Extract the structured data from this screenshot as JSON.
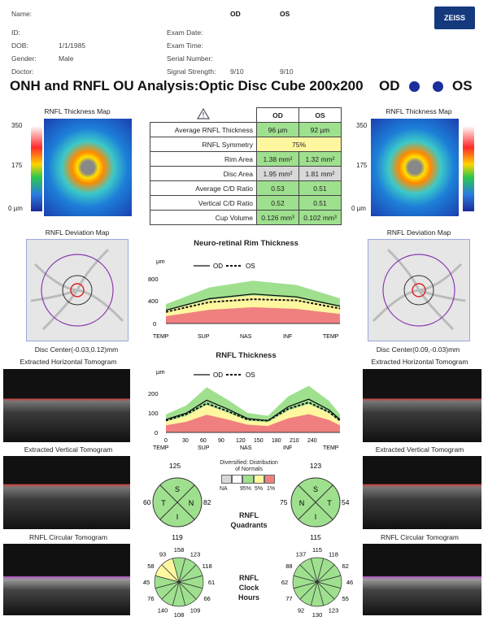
{
  "header": {
    "name_label": "Name:",
    "id_label": "ID:",
    "dob_label": "DOB:",
    "dob_value": "1/1/1985",
    "gender_label": "Gender:",
    "gender_value": "Male",
    "doctor_label": "Doctor:",
    "od_col": "OD",
    "os_col": "OS",
    "exam_date_label": "Exam Date:",
    "exam_time_label": "Exam Time:",
    "serial_label": "Serial Number:",
    "signal_label": "Signal Strength:",
    "signal_od": "9/10",
    "signal_os": "9/10",
    "logo": "ZEISS"
  },
  "title": "ONH and RNFL OU Analysis:Optic Disc Cube 200x200",
  "eye_od": "OD",
  "eye_os": "OS",
  "colors": {
    "od_dot": "#1a2e9c",
    "os_dot": "#1a2e9c",
    "normal": "#9fe08f",
    "borderline": "#fff7a0"
  },
  "table": {
    "icon": "warning-triangle",
    "col_od": "OD",
    "col_os": "OS",
    "rows": [
      {
        "label": "Average RNFL Thickness",
        "od": "96 µm",
        "os": "92 µm"
      },
      {
        "label": "RNFL Symmetry",
        "od": "75%",
        "os": ""
      },
      {
        "label": "Rim Area",
        "od": "1.38 mm²",
        "os": "1.32 mm²"
      },
      {
        "label": "Disc Area",
        "od": "1.95 mm²",
        "os": "1.81 mm²"
      },
      {
        "label": "Average C/D Ratio",
        "od": "0.53",
        "os": "0.51"
      },
      {
        "label": "Vertical C/D Ratio",
        "od": "0.52",
        "os": "0.51"
      },
      {
        "label": "Cup Volume",
        "od": "0.126 mm³",
        "os": "0.102 mm³"
      }
    ]
  },
  "left": {
    "thickness_map": "RNFL Thickness Map",
    "scale_top": "350",
    "scale_mid": "175",
    "scale_bot": "0 µm",
    "deviation_map": "RNFL Deviation Map",
    "disc_center": "Disc Center(-0.03,0.12)mm",
    "h_tomo": "Extracted Horizontal Tomogram",
    "v_tomo": "Extracted Vertical Tomogram",
    "c_tomo": "RNFL Circular Tomogram"
  },
  "right": {
    "thickness_map": "RNFL Thickness Map",
    "scale_top": "350",
    "scale_mid": "175",
    "scale_bot": "0 µm",
    "deviation_map": "RNFL Deviation Map",
    "disc_center": "Disc Center(0.09,-0.03)mm",
    "h_tomo": "Extracted Horizontal Tomogram",
    "v_tomo": "Extracted Vertical Tomogram",
    "c_tomo": "RNFL Circular Tomogram"
  },
  "rim_chart": {
    "title": "Neuro-retinal Rim Thickness",
    "unit": "µm",
    "legend_od": "OD",
    "legend_os": "OS",
    "yticks": [
      "800",
      "400",
      "0"
    ],
    "xticks": [
      "TEMP",
      "SUP",
      "NAS",
      "INF",
      "TEMP"
    ]
  },
  "rnfl_chart": {
    "title": "RNFL Thickness",
    "unit": "µm",
    "legend_od": "OD",
    "legend_os": "OS",
    "yticks": [
      "200",
      "100",
      "0"
    ],
    "xnums": [
      "0",
      "30",
      "60",
      "90",
      "120",
      "150",
      "180",
      "210",
      "240"
    ],
    "xticks": [
      "TEMP",
      "SUP",
      "NAS",
      "INF",
      "TEMP"
    ]
  },
  "chart_data": [
    {
      "type": "area",
      "title": "Neuro-retinal Rim Thickness",
      "ylabel": "µm",
      "ylim": [
        0,
        900
      ],
      "categories": [
        "TEMP",
        "SUP",
        "NAS",
        "INF",
        "TEMP"
      ],
      "series": [
        {
          "name": "OD",
          "values": [
            230,
            430,
            510,
            460,
            300
          ]
        },
        {
          "name": "OS",
          "values": [
            200,
            370,
            420,
            400,
            260
          ]
        }
      ]
    },
    {
      "type": "area",
      "title": "RNFL Thickness",
      "ylabel": "µm",
      "ylim": [
        0,
        250
      ],
      "x": [
        0,
        30,
        60,
        90,
        120,
        150,
        180,
        210,
        240,
        256
      ],
      "series": [
        {
          "name": "OD",
          "values": [
            60,
            90,
            150,
            110,
            65,
            55,
            120,
            155,
            105,
            60
          ]
        },
        {
          "name": "OS",
          "values": [
            55,
            85,
            135,
            100,
            60,
            55,
            110,
            140,
            95,
            55
          ]
        }
      ]
    }
  ],
  "legend": {
    "title": "Diversified: Distribution of Normals",
    "na": "NA",
    "p95": "95%",
    "p5": "5%",
    "p1": "1%"
  },
  "quadrants": {
    "label1": "RNFL",
    "label2": "Quadrants",
    "od": {
      "top": "125",
      "bot": "119",
      "left": "60",
      "right": "82",
      "s": "S",
      "i": "I",
      "t": "T",
      "n": "N"
    },
    "os": {
      "top": "123",
      "bot": "115",
      "left": "75",
      "right": "54",
      "s": "S",
      "i": "I",
      "t": "T",
      "n": "N"
    }
  },
  "clock": {
    "label1": "RNFL",
    "label2": "Clock",
    "label3": "Hours",
    "od": {
      "c12": "158",
      "c1": "123",
      "c2": "118",
      "c3": "61",
      "c4": "66",
      "c5": "109",
      "c6": "108",
      "c7": "140",
      "c8": "76",
      "c9": "45",
      "c10": "58",
      "c11": "93"
    },
    "os": {
      "c12": "115",
      "c1": "118",
      "c2": "62",
      "c3": "46",
      "c4": "55",
      "c5": "123",
      "c6": "130",
      "c7": "92",
      "c8": "77",
      "c9": "62",
      "c10": "88",
      "c11": "137"
    }
  }
}
